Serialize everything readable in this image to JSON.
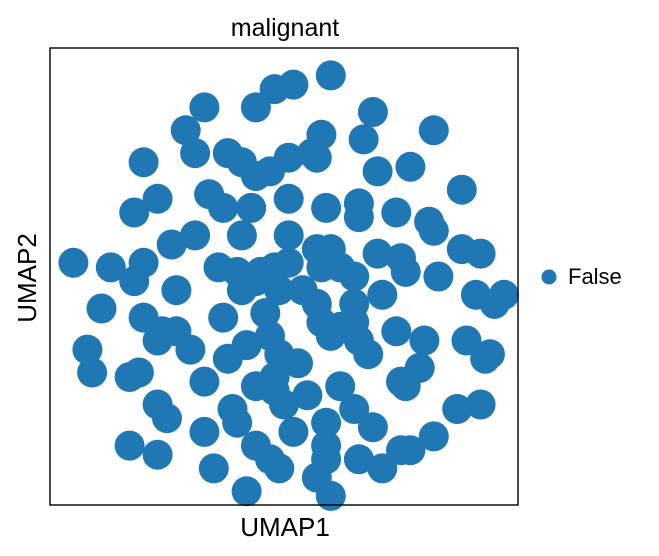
{
  "chart_data": {
    "type": "scatter",
    "title": "malignant",
    "xlabel": "UMAP1",
    "ylabel": "UMAP2",
    "grid": false,
    "show_ticks": false,
    "legend": {
      "placement": "right",
      "entries": [
        {
          "label": "False",
          "color": "#1f77b4"
        }
      ]
    },
    "xlim": [
      0,
      100
    ],
    "ylim": [
      0,
      100
    ],
    "series": [
      {
        "name": "False",
        "color": "#1f77b4",
        "points": [
          [
            60.0,
            94.0
          ],
          [
            48.0,
            91.0
          ],
          [
            52.0,
            92.0
          ],
          [
            33.0,
            87.0
          ],
          [
            44.0,
            87.0
          ],
          [
            69.0,
            86.0
          ],
          [
            82.0,
            82.0
          ],
          [
            29.0,
            82.0
          ],
          [
            58.0,
            81.0
          ],
          [
            31.0,
            77.0
          ],
          [
            20.0,
            75.0
          ],
          [
            38.0,
            77.0
          ],
          [
            41.0,
            75.0
          ],
          [
            51.0,
            76.0
          ],
          [
            56.0,
            77.0
          ],
          [
            57.0,
            76.0
          ],
          [
            67.0,
            80.0
          ],
          [
            70.0,
            73.0
          ],
          [
            77.0,
            74.0
          ],
          [
            88.0,
            69.0
          ],
          [
            44.0,
            72.0
          ],
          [
            47.0,
            73.0
          ],
          [
            34.0,
            68.0
          ],
          [
            23.0,
            67.0
          ],
          [
            18.0,
            64.0
          ],
          [
            37.0,
            65.0
          ],
          [
            43.0,
            65.0
          ],
          [
            51.0,
            67.0
          ],
          [
            59.0,
            65.0
          ],
          [
            66.0,
            66.0
          ],
          [
            66.0,
            63.0
          ],
          [
            74.0,
            64.0
          ],
          [
            81.0,
            62.0
          ],
          [
            82.0,
            60.0
          ],
          [
            31.0,
            59.0
          ],
          [
            26.0,
            57.0
          ],
          [
            41.0,
            59.0
          ],
          [
            51.0,
            59.0
          ],
          [
            57.0,
            56.0
          ],
          [
            60.0,
            56.0
          ],
          [
            70.0,
            55.0
          ],
          [
            75.0,
            54.0
          ],
          [
            88.0,
            56.0
          ],
          [
            92.0,
            55.0
          ],
          [
            5.0,
            53.0
          ],
          [
            13.0,
            52.0
          ],
          [
            20.0,
            53.0
          ],
          [
            36.0,
            52.0
          ],
          [
            40.0,
            51.0
          ],
          [
            45.0,
            51.0
          ],
          [
            48.0,
            52.0
          ],
          [
            51.0,
            53.0
          ],
          [
            58.0,
            52.0
          ],
          [
            62.0,
            52.0
          ],
          [
            65.0,
            50.0
          ],
          [
            76.0,
            51.0
          ],
          [
            83.0,
            50.0
          ],
          [
            18.0,
            49.0
          ],
          [
            27.0,
            47.0
          ],
          [
            41.0,
            47.0
          ],
          [
            44.0,
            49.0
          ],
          [
            49.0,
            47.0
          ],
          [
            54.0,
            47.0
          ],
          [
            57.0,
            44.0
          ],
          [
            65.0,
            44.0
          ],
          [
            71.0,
            46.0
          ],
          [
            91.0,
            46.0
          ],
          [
            97.0,
            46.0
          ],
          [
            11.0,
            43.0
          ],
          [
            20.0,
            41.0
          ],
          [
            27.0,
            38.0
          ],
          [
            37.0,
            41.0
          ],
          [
            46.0,
            42.0
          ],
          [
            58.0,
            40.0
          ],
          [
            62.0,
            39.0
          ],
          [
            65.0,
            40.0
          ],
          [
            74.0,
            38.0
          ],
          [
            80.0,
            36.0
          ],
          [
            89.0,
            36.0
          ],
          [
            95.0,
            44.0
          ],
          [
            8.0,
            34.0
          ],
          [
            23.0,
            36.0
          ],
          [
            24.0,
            38.0
          ],
          [
            30.0,
            34.0
          ],
          [
            38.0,
            32.0
          ],
          [
            42.0,
            35.0
          ],
          [
            47.0,
            37.0
          ],
          [
            60.0,
            37.0
          ],
          [
            66.0,
            36.0
          ],
          [
            68.0,
            33.0
          ],
          [
            79.0,
            30.0
          ],
          [
            93.0,
            32.0
          ],
          [
            94.0,
            33.0
          ],
          [
            9.0,
            29.0
          ],
          [
            17.0,
            28.0
          ],
          [
            19.0,
            29.0
          ],
          [
            33.0,
            27.0
          ],
          [
            44.0,
            26.0
          ],
          [
            48.0,
            28.0
          ],
          [
            49.0,
            33.0
          ],
          [
            53.0,
            31.0
          ],
          [
            62.0,
            26.0
          ],
          [
            75.0,
            27.0
          ],
          [
            76.0,
            26.0
          ],
          [
            48.0,
            25.0
          ],
          [
            23.0,
            22.0
          ],
          [
            25.0,
            19.0
          ],
          [
            39.0,
            21.0
          ],
          [
            50.0,
            22.0
          ],
          [
            55.0,
            24.0
          ],
          [
            65.0,
            21.0
          ],
          [
            87.0,
            21.0
          ],
          [
            92.0,
            22.0
          ],
          [
            33.0,
            16.0
          ],
          [
            40.0,
            18.0
          ],
          [
            52.0,
            16.0
          ],
          [
            59.0,
            18.0
          ],
          [
            69.0,
            17.0
          ],
          [
            82.0,
            15.0
          ],
          [
            17.0,
            13.0
          ],
          [
            23.0,
            11.0
          ],
          [
            44.0,
            13.0
          ],
          [
            47.0,
            10.0
          ],
          [
            59.0,
            13.0
          ],
          [
            75.0,
            12.0
          ],
          [
            77.0,
            12.0
          ],
          [
            35.0,
            8.0
          ],
          [
            49.0,
            8.0
          ],
          [
            57.0,
            6.0
          ],
          [
            59.0,
            10.0
          ],
          [
            66.0,
            10.0
          ],
          [
            42.0,
            3.0
          ],
          [
            60.0,
            2.0
          ],
          [
            71.0,
            8.0
          ]
        ]
      }
    ]
  }
}
